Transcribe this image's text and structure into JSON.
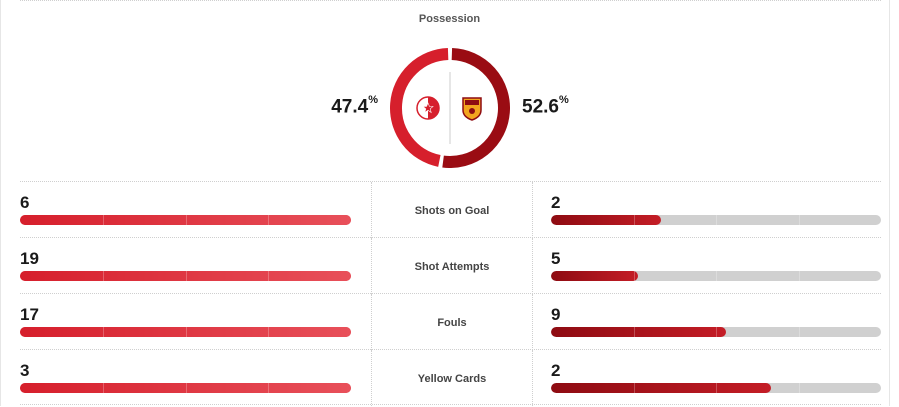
{
  "possession": {
    "label": "Possession",
    "home": {
      "value": "47.4",
      "unit": "%",
      "fraction": 0.474,
      "color": "#d61f2c"
    },
    "away": {
      "value": "52.6",
      "unit": "%",
      "fraction": 0.526,
      "color": "#9a0c13"
    },
    "home_logo": "slavia-crest-icon",
    "away_logo": "roma-crest-icon"
  },
  "stats": [
    {
      "label": "Shots on Goal",
      "home": "6",
      "away": "2",
      "home_fraction": 1.0,
      "away_fraction": 0.333
    },
    {
      "label": "Shot Attempts",
      "home": "19",
      "away": "5",
      "home_fraction": 1.0,
      "away_fraction": 0.263
    },
    {
      "label": "Fouls",
      "home": "17",
      "away": "9",
      "home_fraction": 1.0,
      "away_fraction": 0.529
    },
    {
      "label": "Yellow Cards",
      "home": "3",
      "away": "2",
      "home_fraction": 1.0,
      "away_fraction": 0.667
    }
  ],
  "colors": {
    "home_bar": "#e03a45",
    "away_bar": "#a0121a",
    "track": "#d0d0d0"
  }
}
